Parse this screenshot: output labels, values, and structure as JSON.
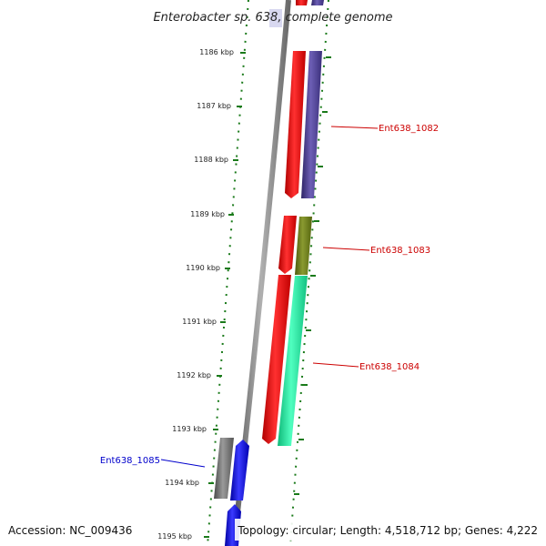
{
  "title": "Enterobacter sp. 638, complete genome",
  "footer": {
    "accession": "Accession: NC_009436",
    "topology": "Topology: circular; Length: 4,518,712 bp; Genes: 4,222"
  },
  "ticks": [
    "1186 kbp",
    "1187 kbp",
    "1188 kbp",
    "1189 kbp",
    "1190 kbp",
    "1191 kbp",
    "1192 kbp",
    "1193 kbp",
    "1194 kbp",
    "1195 kbp"
  ],
  "genes": [
    {
      "label": "Ent638_1082",
      "label_color": "#cc0000"
    },
    {
      "label": "Ent638_1083",
      "label_color": "#cc0000"
    },
    {
      "label": "Ent638_1084",
      "label_color": "#cc0000"
    },
    {
      "label": "Ent638_1085",
      "label_color": "#0000cc"
    }
  ],
  "colors": {
    "tick_green": "#1a7a1a",
    "backbone": "#808080",
    "red": "#ff0000",
    "purple": "#4b3d8f",
    "olive": "#6b7a1a",
    "aqua": "#1aee9a",
    "grey": "#707070",
    "blue": "#0000ee"
  }
}
